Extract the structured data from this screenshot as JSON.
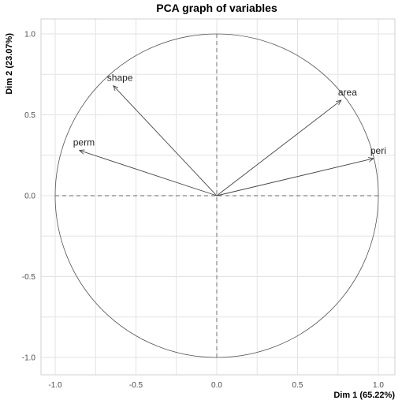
{
  "chart_data": {
    "type": "scatter",
    "title": "PCA graph of variables",
    "xlabel": "Dim 1 (65.22%)",
    "ylabel": "Dim 2 (23.07%)",
    "xlim": [
      -1.0,
      1.0
    ],
    "ylim": [
      -1.0,
      1.0
    ],
    "x_ticks": [
      "-1.0",
      "-0.5",
      "0.0",
      "0.5",
      "1.0"
    ],
    "y_ticks": [
      "-1.0",
      "-0.5",
      "0.0",
      "0.5",
      "1.0"
    ],
    "grid": true,
    "correlation_circle": true,
    "variables": [
      {
        "name": "shape",
        "x": -0.64,
        "y": 0.68
      },
      {
        "name": "perm",
        "x": -0.85,
        "y": 0.28
      },
      {
        "name": "area",
        "x": 0.77,
        "y": 0.59
      },
      {
        "name": "peri",
        "x": 0.97,
        "y": 0.23
      }
    ]
  }
}
